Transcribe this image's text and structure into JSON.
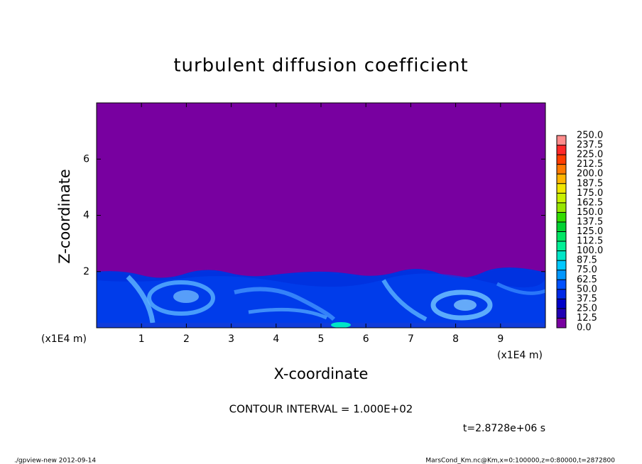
{
  "chart_data": {
    "type": "contour",
    "title": "turbulent diffusion coefficient",
    "x_label": "X-coordinate",
    "y_label": "Z-coordinate",
    "unit_labels": [
      "(x1E4 m)",
      "(x1E4 m)"
    ],
    "xlim": [
      0,
      10
    ],
    "ylim": [
      0,
      8
    ],
    "xticks": [
      1,
      2,
      3,
      4,
      5,
      6,
      7,
      8,
      9
    ],
    "yticks": [
      2,
      4,
      6
    ],
    "colorbar": {
      "levels": [
        {
          "value": 0,
          "label": "0.0"
        },
        {
          "value": 12.5,
          "label": "12.5"
        },
        {
          "value": 25,
          "label": "25.0"
        },
        {
          "value": 37.5,
          "label": "37.5"
        },
        {
          "value": 50,
          "label": "50.0"
        },
        {
          "value": 62.5,
          "label": "62.5"
        },
        {
          "value": 75,
          "label": "75.0"
        },
        {
          "value": 87.5,
          "label": "87.5"
        },
        {
          "value": 100,
          "label": "100.0"
        },
        {
          "value": 112.5,
          "label": "112.5"
        },
        {
          "value": 125,
          "label": "125.0"
        },
        {
          "value": 137.5,
          "label": "137.5"
        },
        {
          "value": 150,
          "label": "150.0"
        },
        {
          "value": 162.5,
          "label": "162.5"
        },
        {
          "value": 175,
          "label": "175.0"
        },
        {
          "value": 187.5,
          "label": "187.5"
        },
        {
          "value": 200,
          "label": "200.0"
        },
        {
          "value": 212.5,
          "label": "212.5"
        },
        {
          "value": 225,
          "label": "225.0"
        },
        {
          "value": 237.5,
          "label": "237.5"
        },
        {
          "value": 250,
          "label": "250.0"
        }
      ],
      "colors": [
        "#7800a0",
        "#2000b4",
        "#0000c8",
        "#0028e6",
        "#0050ff",
        "#0096ff",
        "#00c8ff",
        "#00e6c8",
        "#00f096",
        "#00e664",
        "#00d232",
        "#32dc00",
        "#96e600",
        "#c8f000",
        "#f0e600",
        "#ffb400",
        "#ff7800",
        "#ff3c00",
        "#ff2828",
        "#ff8c8c"
      ]
    },
    "contour_interval": "CONTOUR INTERVAL = 1.000E+02",
    "time_label": "t=2.8728e+06 s",
    "footer_left": "./gpview-new  2012-09-14",
    "footer_right": "MarsCond_Km.nc@Km,x=0:100000,z=0:80000,t=2872800"
  }
}
